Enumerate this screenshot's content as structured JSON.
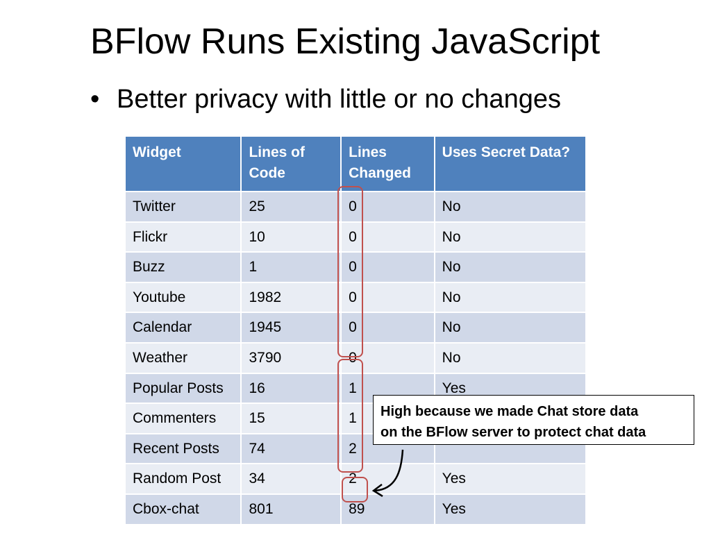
{
  "slide": {
    "title": "BFlow Runs Existing JavaScript",
    "bullet": "Better privacy with little or no changes"
  },
  "table": {
    "headers": [
      "Widget",
      "Lines of Code",
      "Lines Changed",
      "Uses Secret Data?"
    ],
    "rows": [
      [
        "Twitter",
        "25",
        "0",
        "No"
      ],
      [
        "Flickr",
        "10",
        "0",
        "No"
      ],
      [
        "Buzz",
        "1",
        "0",
        "No"
      ],
      [
        "Youtube",
        "1982",
        "0",
        "No"
      ],
      [
        "Calendar",
        "1945",
        "0",
        "No"
      ],
      [
        "Weather",
        "3790",
        "0",
        "No"
      ],
      [
        "Popular Posts",
        "16",
        "1",
        "Yes"
      ],
      [
        "Commenters",
        "15",
        "1",
        ""
      ],
      [
        "Recent Posts",
        "74",
        "2",
        ""
      ],
      [
        "Random Post",
        "34",
        "2",
        "Yes"
      ],
      [
        "Cbox-chat",
        "801",
        "89",
        "Yes"
      ]
    ]
  },
  "callout": {
    "line1": "High because we made Chat store data",
    "line2": "on the BFlow server to protect chat data"
  },
  "colors": {
    "header_bg": "#4f81bd",
    "row_odd": "#d0d8e8",
    "row_even": "#e9edf4",
    "highlight": "#c0504d"
  }
}
